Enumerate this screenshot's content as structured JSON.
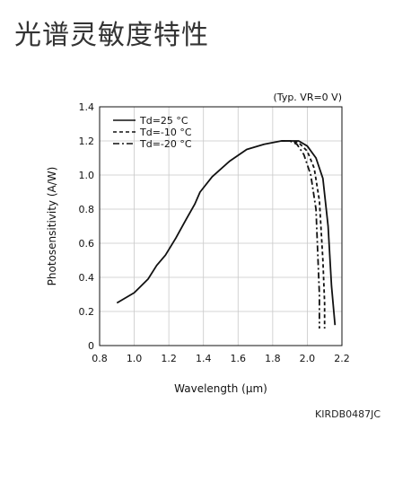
{
  "page": {
    "title": "光谱灵敏度特性",
    "figure_code": "KIRDB0487JC"
  },
  "chart_data": {
    "type": "line",
    "annotation": "(Typ. VR=0 V)",
    "xlabel": "Wavelength (μm)",
    "ylabel": "Photosensitivity (A/W)",
    "xlim": [
      0.8,
      2.2
    ],
    "ylim": [
      0,
      1.4
    ],
    "x_ticks": [
      "0.8",
      "1.0",
      "1.2",
      "1.4",
      "1.6",
      "1.8",
      "2.0",
      "2.2"
    ],
    "y_ticks": [
      "0",
      "0.2",
      "0.4",
      "0.6",
      "0.8",
      "1.0",
      "1.2",
      "1.4"
    ],
    "grid": true,
    "legend_position": "top-left",
    "series": [
      {
        "name": "Td=25 °C",
        "style": "solid",
        "x": [
          0.9,
          1.0,
          1.08,
          1.13,
          1.18,
          1.24,
          1.3,
          1.35,
          1.38,
          1.45,
          1.55,
          1.65,
          1.75,
          1.85,
          1.9,
          1.95,
          2.0,
          2.05,
          2.09,
          2.12,
          2.14,
          2.16
        ],
        "y": [
          0.25,
          0.31,
          0.39,
          0.47,
          0.53,
          0.63,
          0.74,
          0.83,
          0.9,
          0.99,
          1.08,
          1.15,
          1.18,
          1.2,
          1.2,
          1.2,
          1.17,
          1.1,
          0.98,
          0.7,
          0.35,
          0.12
        ]
      },
      {
        "name": "Td=-10 °C",
        "style": "dashed",
        "x": [
          1.85,
          1.9,
          1.95,
          2.0,
          2.04,
          2.07,
          2.09,
          2.1,
          2.1
        ],
        "y": [
          1.2,
          1.2,
          1.19,
          1.14,
          1.04,
          0.85,
          0.5,
          0.25,
          0.1
        ]
      },
      {
        "name": "Td=-20 °C",
        "style": "dashdot",
        "x": [
          1.85,
          1.9,
          1.94,
          1.98,
          2.02,
          2.05,
          2.06,
          2.07,
          2.07
        ],
        "y": [
          1.2,
          1.2,
          1.18,
          1.12,
          1.0,
          0.8,
          0.55,
          0.3,
          0.1
        ]
      }
    ]
  }
}
